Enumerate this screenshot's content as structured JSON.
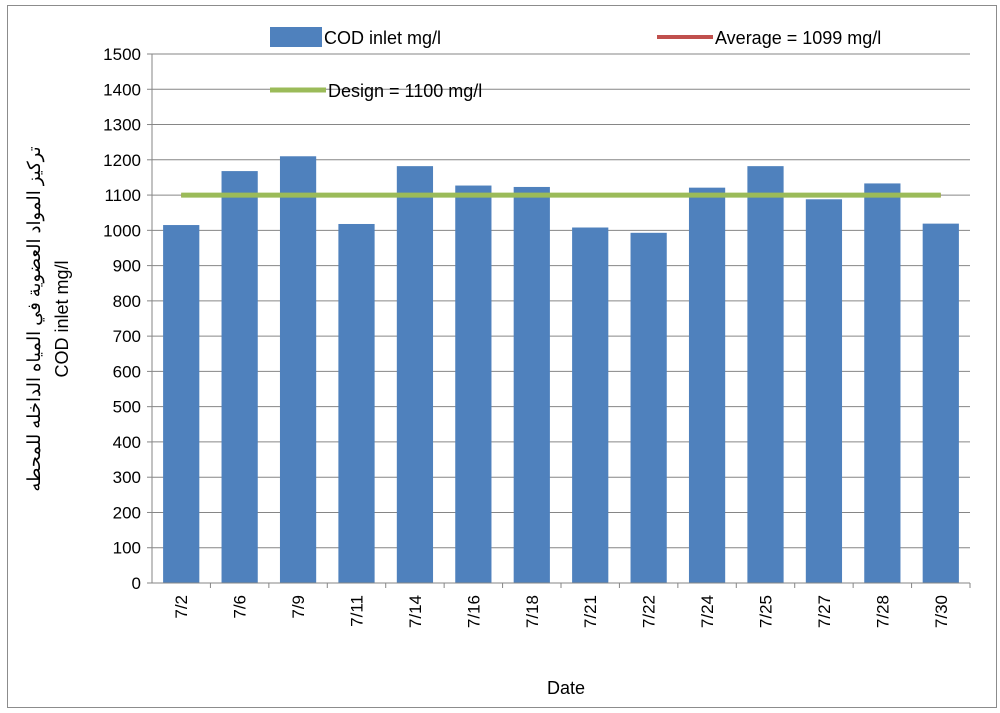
{
  "chart_data": {
    "type": "bar",
    "categories": [
      "7/2",
      "7/6",
      "7/9",
      "7/11",
      "7/14",
      "7/16",
      "7/18",
      "7/21",
      "7/22",
      "7/24",
      "7/25",
      "7/27",
      "7/28",
      "7/30"
    ],
    "series": [
      {
        "name": "COD inlet mg/l",
        "type": "bar",
        "color": "#4f81bd",
        "values": [
          1015,
          1168,
          1210,
          1018,
          1182,
          1127,
          1123,
          1008,
          993,
          1121,
          1182,
          1088,
          1133,
          1019
        ]
      },
      {
        "name": "Average = 1099 mg/l",
        "type": "line",
        "color": "#c0504d",
        "value": 1099
      },
      {
        "name": "Design = 1100 mg/l",
        "type": "line",
        "color": "#9bbb59",
        "value": 1100
      }
    ],
    "xlabel": "Date",
    "ylabel_lines": [
      "تركيز المواد العضوية في المياه الداخله للمحطه",
      "COD inlet mg/l"
    ],
    "ylim": [
      0,
      1500
    ],
    "yticks": [
      0,
      100,
      200,
      300,
      400,
      500,
      600,
      700,
      800,
      900,
      1000,
      1100,
      1200,
      1300,
      1400,
      1500
    ],
    "grid": true,
    "legend_position": "top"
  }
}
